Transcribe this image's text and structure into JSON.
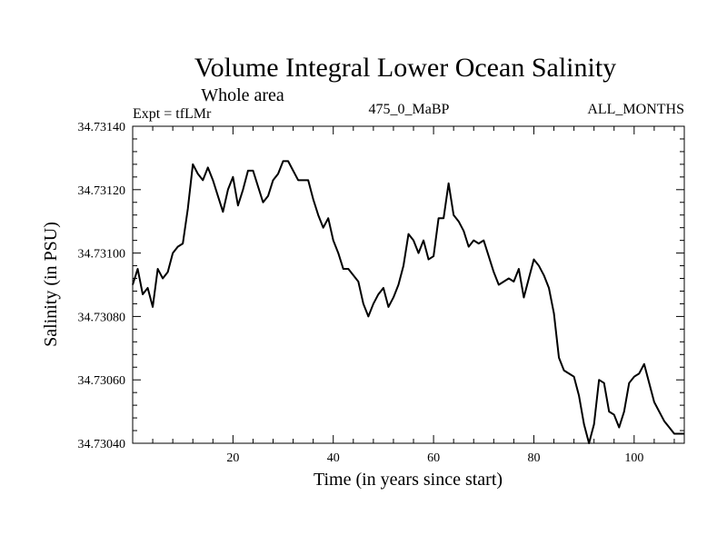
{
  "chart_data": {
    "type": "line",
    "title": "Volume Integral Lower Ocean Salinity",
    "subtitle": "Whole area",
    "left_label": "Expt = tfLMr",
    "center_label": "475_0_MaBP",
    "right_label": "ALL_MONTHS",
    "xlabel": "Time (in years since start)",
    "ylabel": "Salinity (in PSU)",
    "xlim": [
      0,
      110
    ],
    "ylim": [
      34.7304,
      34.7314
    ],
    "x_ticks": [
      20,
      40,
      60,
      80,
      100
    ],
    "y_ticks": [
      "34.73040",
      "34.73060",
      "34.73080",
      "34.73100",
      "34.73120",
      "34.73140"
    ],
    "grid": false,
    "series": [
      {
        "name": "salinity",
        "x": [
          0,
          1,
          2,
          3,
          4,
          5,
          6,
          7,
          8,
          9,
          10,
          11,
          12,
          13,
          14,
          15,
          16,
          17,
          18,
          19,
          20,
          21,
          22,
          23,
          24,
          25,
          26,
          27,
          28,
          29,
          30,
          31,
          32,
          33,
          34,
          35,
          36,
          37,
          38,
          39,
          40,
          41,
          42,
          43,
          44,
          45,
          46,
          47,
          48,
          49,
          50,
          51,
          52,
          53,
          54,
          55,
          56,
          57,
          58,
          59,
          60,
          61,
          62,
          63,
          64,
          65,
          66,
          67,
          68,
          69,
          70,
          71,
          72,
          73,
          74,
          75,
          76,
          77,
          78,
          79,
          80,
          81,
          82,
          83,
          84,
          85,
          86,
          87,
          88,
          89,
          90,
          91,
          92,
          93,
          94,
          95,
          96,
          97,
          98,
          99,
          100,
          101,
          102,
          103,
          104,
          105,
          106,
          107,
          108,
          109,
          110
        ],
        "values": [
          34.7309,
          34.73095,
          34.73087,
          34.73089,
          34.73083,
          34.73095,
          34.73092,
          34.73094,
          34.731,
          34.73102,
          34.73103,
          34.73114,
          34.73128,
          34.73125,
          34.73123,
          34.73127,
          34.73123,
          34.73118,
          34.73113,
          34.7312,
          34.73124,
          34.73115,
          34.7312,
          34.73126,
          34.73126,
          34.73121,
          34.73116,
          34.73118,
          34.73123,
          34.73125,
          34.73129,
          34.73129,
          34.73126,
          34.73123,
          34.73123,
          34.73123,
          34.73117,
          34.73112,
          34.73108,
          34.73111,
          34.73104,
          34.731,
          34.73095,
          34.73095,
          34.73093,
          34.73091,
          34.73084,
          34.7308,
          34.73084,
          34.73087,
          34.73089,
          34.73083,
          34.73086,
          34.7309,
          34.73096,
          34.73106,
          34.73104,
          34.731,
          34.73104,
          34.73098,
          34.73099,
          34.73111,
          34.73111,
          34.73122,
          34.73112,
          34.7311,
          34.73107,
          34.73102,
          34.73104,
          34.73103,
          34.73104,
          34.73099,
          34.73094,
          34.7309,
          34.73091,
          34.73092,
          34.73091,
          34.73095,
          34.73086,
          34.73092,
          34.73098,
          34.73096,
          34.73093,
          34.73089,
          34.73081,
          34.73067,
          34.73063,
          34.73062,
          34.73061,
          34.73055,
          34.73046,
          34.7304,
          34.73046,
          34.7306,
          34.73059,
          34.7305,
          34.73049,
          34.73045,
          34.7305,
          34.73059,
          34.73061,
          34.73062,
          34.73065,
          34.73059,
          34.73053,
          34.7305,
          34.73047,
          34.73045,
          34.73043,
          34.73043,
          34.73043
        ]
      }
    ]
  }
}
